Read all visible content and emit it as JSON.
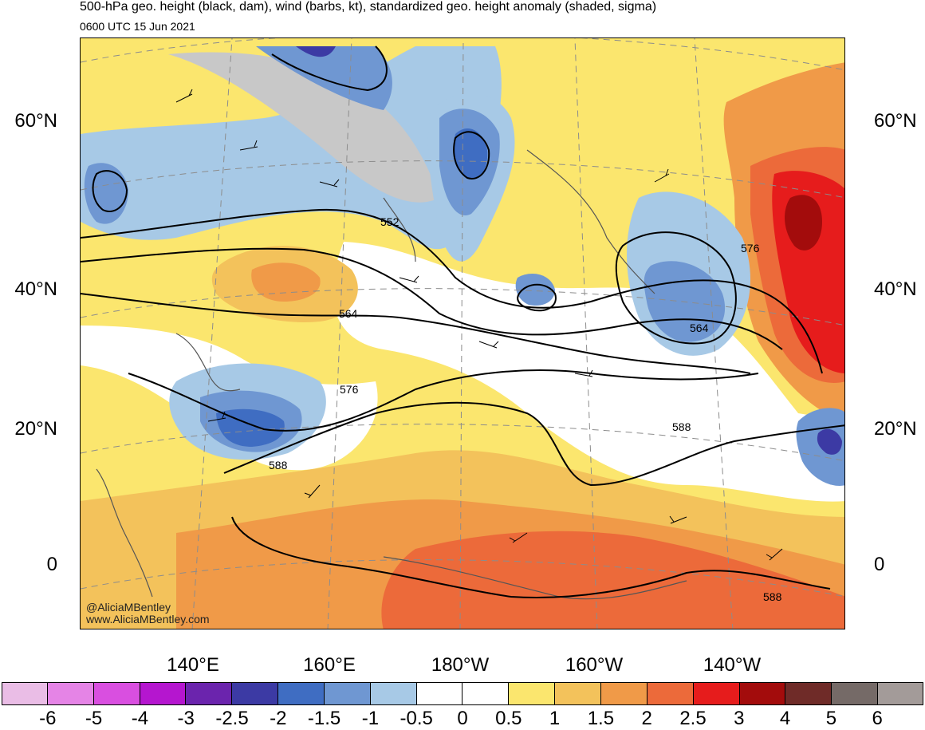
{
  "header": {
    "title": "500-hPa geo. height (black, dam), wind (barbs, kt), standardized geo. height anomaly (shaded, sigma)",
    "valid_time": "0600 UTC 15 Jun 2021"
  },
  "axes": {
    "lat_labels": [
      "60°N",
      "40°N",
      "20°N",
      "0"
    ],
    "lon_labels": [
      "140°E",
      "160°E",
      "180°W",
      "160°W",
      "140°W"
    ]
  },
  "contour_labels": [
    "552",
    "564",
    "576",
    "588",
    "576",
    "564",
    "588",
    "588"
  ],
  "credits": [
    "@AliciaMBentley",
    "www.AliciaMBentley.com"
  ],
  "colorbar": {
    "colors": [
      "#eabde6",
      "#e584e6",
      "#d94fe0",
      "#b516cf",
      "#6b24ad",
      "#3c3aa4",
      "#3f6dc2",
      "#6f97d2",
      "#a7c9e6",
      "#ffffff",
      "#ffffff",
      "#fbe66e",
      "#f3c25b",
      "#f09a48",
      "#ec6a3a",
      "#e61c1c",
      "#a30c0c",
      "#6f2b28",
      "#756a67",
      "#a39b99"
    ],
    "ticks": [
      "-6",
      "-5",
      "-4",
      "-3",
      "-2.5",
      "-2",
      "-1.5",
      "-1",
      "-0.5",
      "0",
      "0.5",
      "1",
      "1.5",
      "2",
      "2.5",
      "3",
      "4",
      "5",
      "6"
    ]
  },
  "colors": {
    "land": "#c8c8c8",
    "coast": "#555555",
    "contour": "#000000",
    "graticule": "#8c8c8c"
  }
}
